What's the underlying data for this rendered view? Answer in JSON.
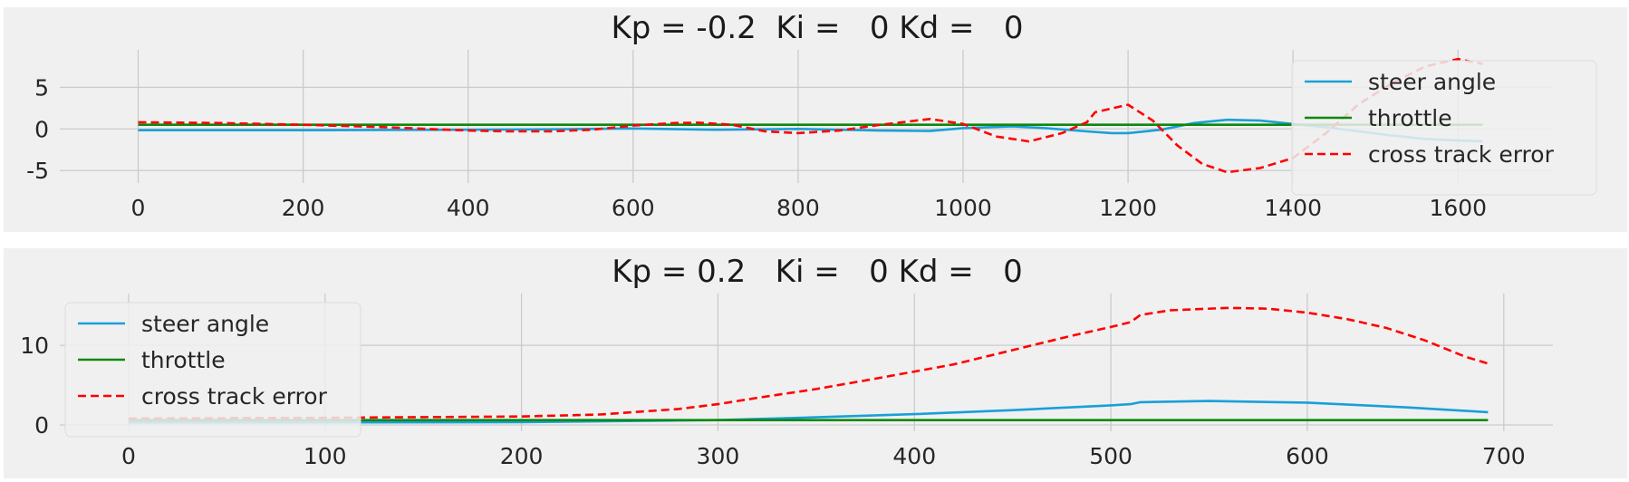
{
  "colors": {
    "figure_bg": "#ffffff",
    "axes_bg": "#f0f0f0",
    "grid": "#cbcbcb",
    "steer": "#1a9fd8",
    "throttle": "#0a8a0a",
    "cte": "#ff0000"
  },
  "chart_data": [
    {
      "type": "line",
      "title": "Kp = -0.2  Ki =   0 Kd =   0",
      "xlim": [
        -95,
        1715
      ],
      "ylim": [
        -6.5,
        9.5
      ],
      "xticks": [
        0,
        200,
        400,
        600,
        800,
        1000,
        1200,
        1400,
        1600
      ],
      "yticks": [
        -5,
        0,
        5
      ],
      "grid": true,
      "legend_loc": "upper right",
      "series": [
        {
          "name": "steer angle",
          "style": "solid",
          "x": [
            0,
            200,
            400,
            500,
            600,
            700,
            800,
            900,
            960,
            1000,
            1060,
            1100,
            1150,
            1180,
            1200,
            1240,
            1280,
            1320,
            1360,
            1400,
            1440,
            1480,
            1520,
            1560,
            1600,
            1630
          ],
          "y": [
            -0.15,
            -0.15,
            -0.1,
            -0.05,
            0.05,
            -0.1,
            0.0,
            -0.2,
            -0.25,
            0.1,
            0.3,
            0.1,
            -0.3,
            -0.5,
            -0.5,
            -0.1,
            0.7,
            1.1,
            1.0,
            0.6,
            0.2,
            -0.3,
            -0.8,
            -1.2,
            -1.4,
            -1.5
          ]
        },
        {
          "name": "throttle",
          "style": "solid",
          "x": [
            0,
            1630
          ],
          "y": [
            0.5,
            0.5
          ]
        },
        {
          "name": "cross track error",
          "style": "dashed",
          "x": [
            0,
            100,
            200,
            300,
            400,
            450,
            500,
            550,
            600,
            650,
            680,
            720,
            760,
            800,
            850,
            900,
            960,
            1000,
            1040,
            1080,
            1120,
            1150,
            1160,
            1200,
            1230,
            1260,
            1290,
            1320,
            1360,
            1400,
            1440,
            1480,
            1520,
            1560,
            1600,
            1630
          ],
          "y": [
            0.8,
            0.7,
            0.5,
            0.2,
            -0.2,
            -0.3,
            -0.3,
            -0.1,
            0.4,
            0.7,
            0.75,
            0.5,
            -0.3,
            -0.5,
            -0.2,
            0.5,
            1.2,
            0.6,
            -0.9,
            -1.5,
            -0.5,
            0.8,
            2.0,
            2.9,
            1.0,
            -2.0,
            -4.2,
            -5.2,
            -4.7,
            -3.5,
            -0.5,
            3.0,
            5.5,
            7.5,
            8.4,
            7.8
          ]
        }
      ]
    },
    {
      "type": "line",
      "title": "Kp = 0.2   Ki =   0 Kd =   0",
      "xlim": [
        -35,
        725
      ],
      "ylim": [
        -0.8,
        16.5
      ],
      "xticks": [
        0,
        100,
        200,
        300,
        400,
        500,
        600,
        700
      ],
      "yticks": [
        0,
        10
      ],
      "grid": true,
      "legend_loc": "upper left",
      "series": [
        {
          "name": "steer angle",
          "style": "solid",
          "x": [
            0,
            100,
            200,
            300,
            350,
            400,
            450,
            500,
            510,
            515,
            550,
            600,
            650,
            692
          ],
          "y": [
            0.3,
            0.3,
            0.35,
            0.6,
            0.95,
            1.35,
            1.85,
            2.45,
            2.6,
            2.85,
            3.0,
            2.8,
            2.2,
            1.6
          ]
        },
        {
          "name": "throttle",
          "style": "solid",
          "x": [
            0,
            692
          ],
          "y": [
            0.6,
            0.6
          ]
        },
        {
          "name": "cross track error",
          "style": "dashed",
          "x": [
            0,
            100,
            200,
            240,
            280,
            300,
            320,
            350,
            380,
            400,
            420,
            440,
            460,
            480,
            500,
            510,
            515,
            530,
            560,
            580,
            600,
            620,
            640,
            660,
            680,
            692
          ],
          "y": [
            0.8,
            0.9,
            1.05,
            1.3,
            2.0,
            2.6,
            3.4,
            4.5,
            5.8,
            6.7,
            7.6,
            8.8,
            10.0,
            11.2,
            12.3,
            12.9,
            13.8,
            14.4,
            14.7,
            14.6,
            14.1,
            13.3,
            12.2,
            10.6,
            8.6,
            7.7
          ]
        }
      ]
    }
  ]
}
